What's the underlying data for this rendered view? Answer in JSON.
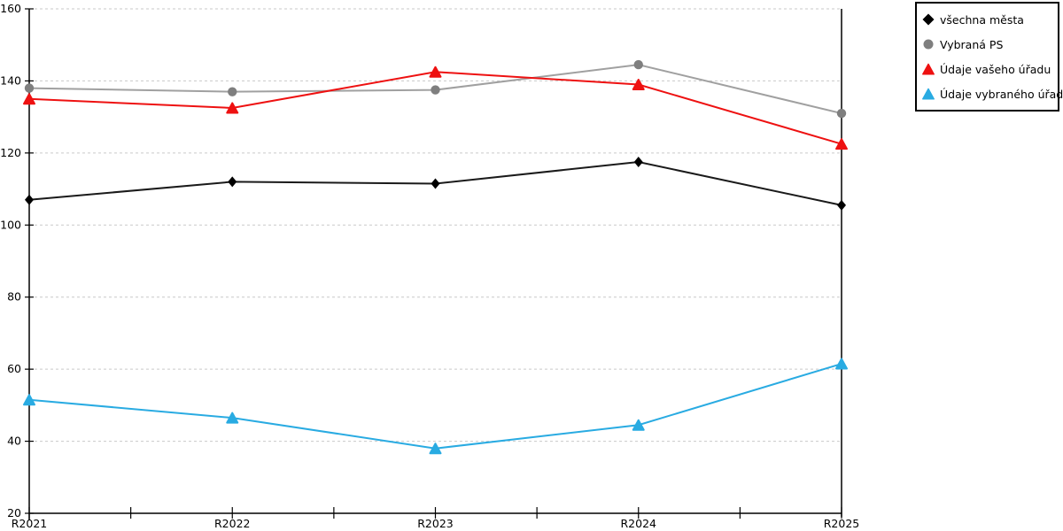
{
  "chart_data": {
    "type": "line",
    "title": "",
    "xlabel": "",
    "ylabel": "",
    "categories": [
      "R2021",
      "R2022",
      "R2023",
      "R2024",
      "R2025"
    ],
    "series": [
      {
        "name": "všechna města",
        "color": "#1a1a1a",
        "marker_color": "#000000",
        "marker": "diamond",
        "values": [
          107,
          112,
          111.5,
          117.5,
          105.5
        ]
      },
      {
        "name": "Vybraná PS",
        "color": "#a0a0a0",
        "marker_color": "#7f7f7f",
        "marker": "circle",
        "values": [
          138,
          137,
          137.5,
          144.5,
          131
        ]
      },
      {
        "name": "Údaje vašeho úřadu",
        "color": "#ee1111",
        "marker_color": "#ee1111",
        "marker": "triangle",
        "values": [
          135,
          132.5,
          142.5,
          139,
          122.5
        ]
      },
      {
        "name": "Údaje vybraného úřadu",
        "color": "#29abe2",
        "marker_color": "#29abe2",
        "marker": "triangle",
        "values": [
          51.5,
          46.5,
          38,
          44.5,
          61.5
        ]
      }
    ],
    "ylim": [
      20,
      160
    ],
    "yticks": [
      20,
      40,
      60,
      80,
      100,
      120,
      140,
      160
    ],
    "grid": "horizontal-dashed",
    "legend_position": "top-right"
  },
  "colors": {
    "axis": "#000000",
    "gridline": "#c9c9c9",
    "background": "#ffffff",
    "tick_label": "#000000"
  }
}
